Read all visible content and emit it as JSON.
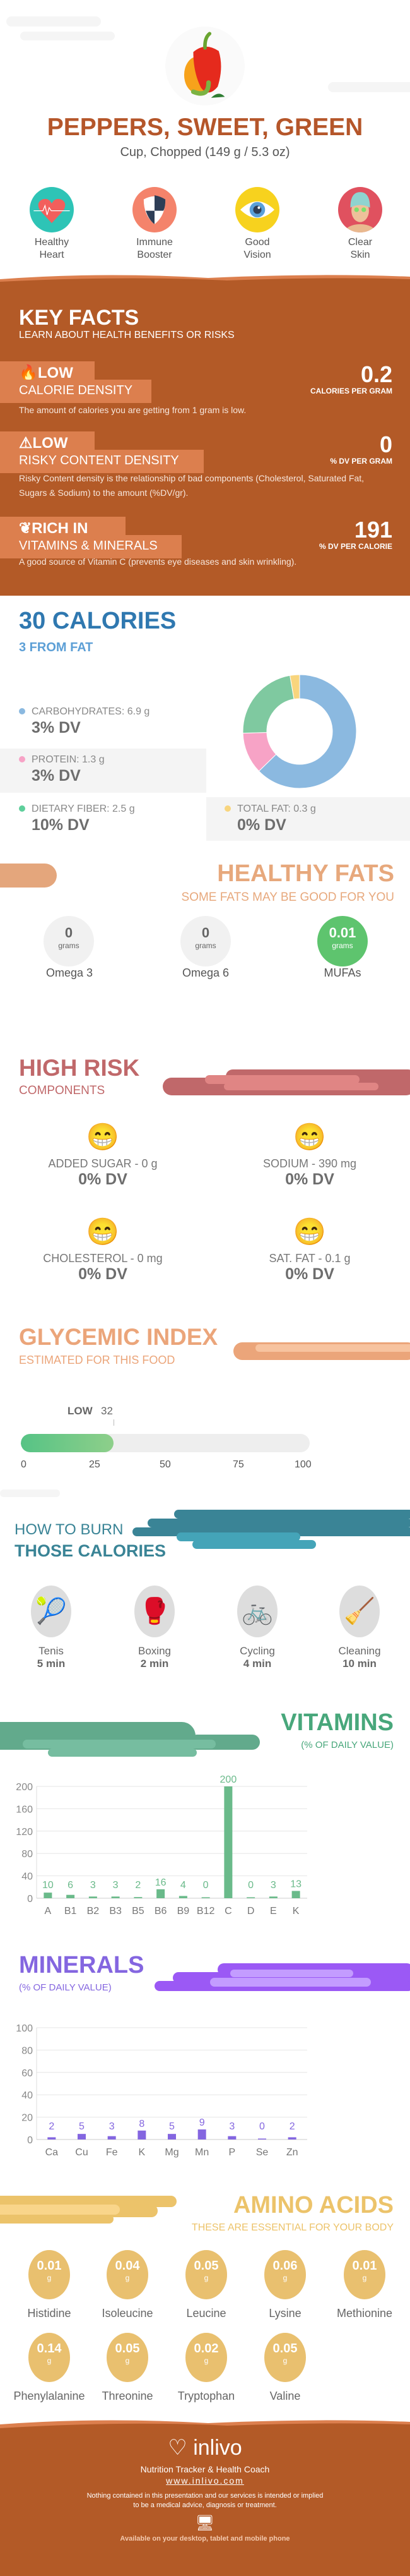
{
  "header": {
    "title": "PEPPERS, SWEET, GREEN",
    "serving": "Cup, Chopped (149 g / 5.3 oz)",
    "benefits": [
      {
        "line1": "Healthy",
        "line2": "Heart",
        "icon": "heart-icon",
        "color": "#2ec4b6"
      },
      {
        "line1": "Immune",
        "line2": "Booster",
        "icon": "shield-icon",
        "color": "#f4836b"
      },
      {
        "line1": "Good",
        "line2": "Vision",
        "icon": "eye-icon",
        "color": "#f7d21e"
      },
      {
        "line1": "Clear",
        "line2": "Skin",
        "icon": "face-icon",
        "color": "#e0515f"
      }
    ]
  },
  "key_facts": {
    "title": "KEY FACTS",
    "subtitle": "LEARN ABOUT HEALTH BENEFITS OR RISKS",
    "facts": [
      {
        "level": "LOW",
        "label": "CALORIE DENSITY",
        "value": "0.2",
        "unit": "CALORIES PER GRAM",
        "desc": "The amount of calories you are getting from 1 gram is low.",
        "icon": "flame-icon"
      },
      {
        "level": "LOW",
        "label": "RISKY CONTENT DENSITY",
        "value": "0",
        "unit": "% DV PER GRAM",
        "desc": "Risky Content density is the relationship of bad components (Cholesterol, Saturated Fat, Sugars & Sodium) to the amount (%DV/gr).",
        "icon": "warning-icon"
      },
      {
        "level": "RICH  IN",
        "label": "VITAMINS & MINERALS",
        "value": "191",
        "unit": "% DV PER CALORIE",
        "desc": "A good source of Vitamin C (prevents eye diseases and skin wrinkling).",
        "icon": "leaf-icon"
      }
    ]
  },
  "calories": {
    "title": "30 CALORIES",
    "subtitle": "3 FROM FAT",
    "macros": [
      {
        "label": "CARBOHYDRATES: 6.9 g",
        "dv": "3% DV",
        "grams": 6.9,
        "color": "#8bb9e0"
      },
      {
        "label": "PROTEIN: 1.3 g",
        "dv": "3% DV",
        "grams": 1.3,
        "color": "#f7a3c6"
      },
      {
        "label": "DIETARY FIBER: 2.5 g",
        "dv": "10% DV",
        "grams": 2.5,
        "color": "#7fc9a0"
      },
      {
        "label": "TOTAL FAT: 0.3 g",
        "dv": "0% DV",
        "grams": 0.3,
        "color": "#f8d57e"
      }
    ]
  },
  "healthy_fats": {
    "title": "HEALTHY FATS",
    "subtitle": "SOME FATS MAY BE GOOD FOR YOU",
    "items": [
      {
        "value": "0",
        "unit": "grams",
        "name": "Omega 3"
      },
      {
        "value": "0",
        "unit": "grams",
        "name": "Omega 6"
      },
      {
        "value": "0.01",
        "unit": "grams",
        "name": "MUFAs"
      }
    ]
  },
  "high_risk": {
    "title": "HIGH RISK",
    "subtitle": "COMPONENTS",
    "items": [
      {
        "label": "ADDED SUGAR - 0 g",
        "dv": "0% DV"
      },
      {
        "label": "SODIUM - 390 mg",
        "dv": "0% DV"
      },
      {
        "label": "CHOLESTEROL - 0 mg",
        "dv": "0% DV"
      },
      {
        "label": "SAT. FAT - 0.1 g",
        "dv": "0% DV"
      }
    ]
  },
  "glycemic": {
    "title": "GLYCEMIC INDEX",
    "subtitle": "ESTIMATED FOR THIS FOOD",
    "level": "LOW",
    "value": 32,
    "value_label": "32",
    "ticks": [
      "0",
      "25",
      "50",
      "75",
      "100"
    ]
  },
  "burn": {
    "title1": "HOW TO BURN",
    "title2": "THOSE CALORIES",
    "activities": [
      {
        "name": "Tenis",
        "time": "5 min"
      },
      {
        "name": "Boxing",
        "time": "2 min"
      },
      {
        "name": "Cycling",
        "time": "4 min"
      },
      {
        "name": "Cleaning",
        "time": "10 min"
      }
    ]
  },
  "chart_data": [
    {
      "type": "bar",
      "title": "VITAMINS",
      "subtitle": "(% OF DAILY VALUE)",
      "categories": [
        "A",
        "B1",
        "B2",
        "B3",
        "B5",
        "B6",
        "B9",
        "B12",
        "C",
        "D",
        "E",
        "K"
      ],
      "values": [
        10,
        6,
        3,
        3,
        2,
        16,
        4,
        0,
        200,
        0,
        3,
        13
      ],
      "yticks": [
        "0",
        "40",
        "80",
        "120",
        "160",
        "200"
      ],
      "ylim": [
        0,
        200
      ],
      "grid": true,
      "color": "#6aba8a"
    },
    {
      "type": "bar",
      "title": "MINERALS",
      "subtitle": "(% OF DAILY VALUE)",
      "categories": [
        "Ca",
        "Cu",
        "Fe",
        "K",
        "Mg",
        "Mn",
        "P",
        "Se",
        "Zn"
      ],
      "values": [
        2,
        5,
        3,
        8,
        5,
        9,
        3,
        0,
        2
      ],
      "yticks": [
        "0",
        "20",
        "40",
        "60",
        "80",
        "100"
      ],
      "ylim": [
        0,
        100
      ],
      "grid": true,
      "color": "#8466e0"
    }
  ],
  "amino": {
    "title": "AMINO ACIDS",
    "subtitle": "THESE ARE ESSENTIAL FOR YOUR BODY",
    "items": [
      {
        "value": "0.01",
        "unit": "g",
        "name": "Histidine"
      },
      {
        "value": "0.04",
        "unit": "g",
        "name": "Isoleucine"
      },
      {
        "value": "0.05",
        "unit": "g",
        "name": "Leucine"
      },
      {
        "value": "0.06",
        "unit": "g",
        "name": "Lysine"
      },
      {
        "value": "0.01",
        "unit": "g",
        "name": "Methionine"
      },
      {
        "value": "0.14",
        "unit": "g",
        "name": "Phenylalanine"
      },
      {
        "value": "0.05",
        "unit": "g",
        "name": "Threonine"
      },
      {
        "value": "0.02",
        "unit": "g",
        "name": "Tryptophan"
      },
      {
        "value": "0.05",
        "unit": "g",
        "name": "Valine"
      }
    ]
  },
  "footer": {
    "brand": "inlivo",
    "tagline": "Nutrition Tracker & Health Coach",
    "url": "www.inlivo.com",
    "disclaimer1": "Nothing contained in this presentation and our services is intended or implied",
    "disclaimer2": "to be a medical advice, diagnosis or treatment.",
    "available": "Available on your desktop, tablet and mobile phone"
  }
}
